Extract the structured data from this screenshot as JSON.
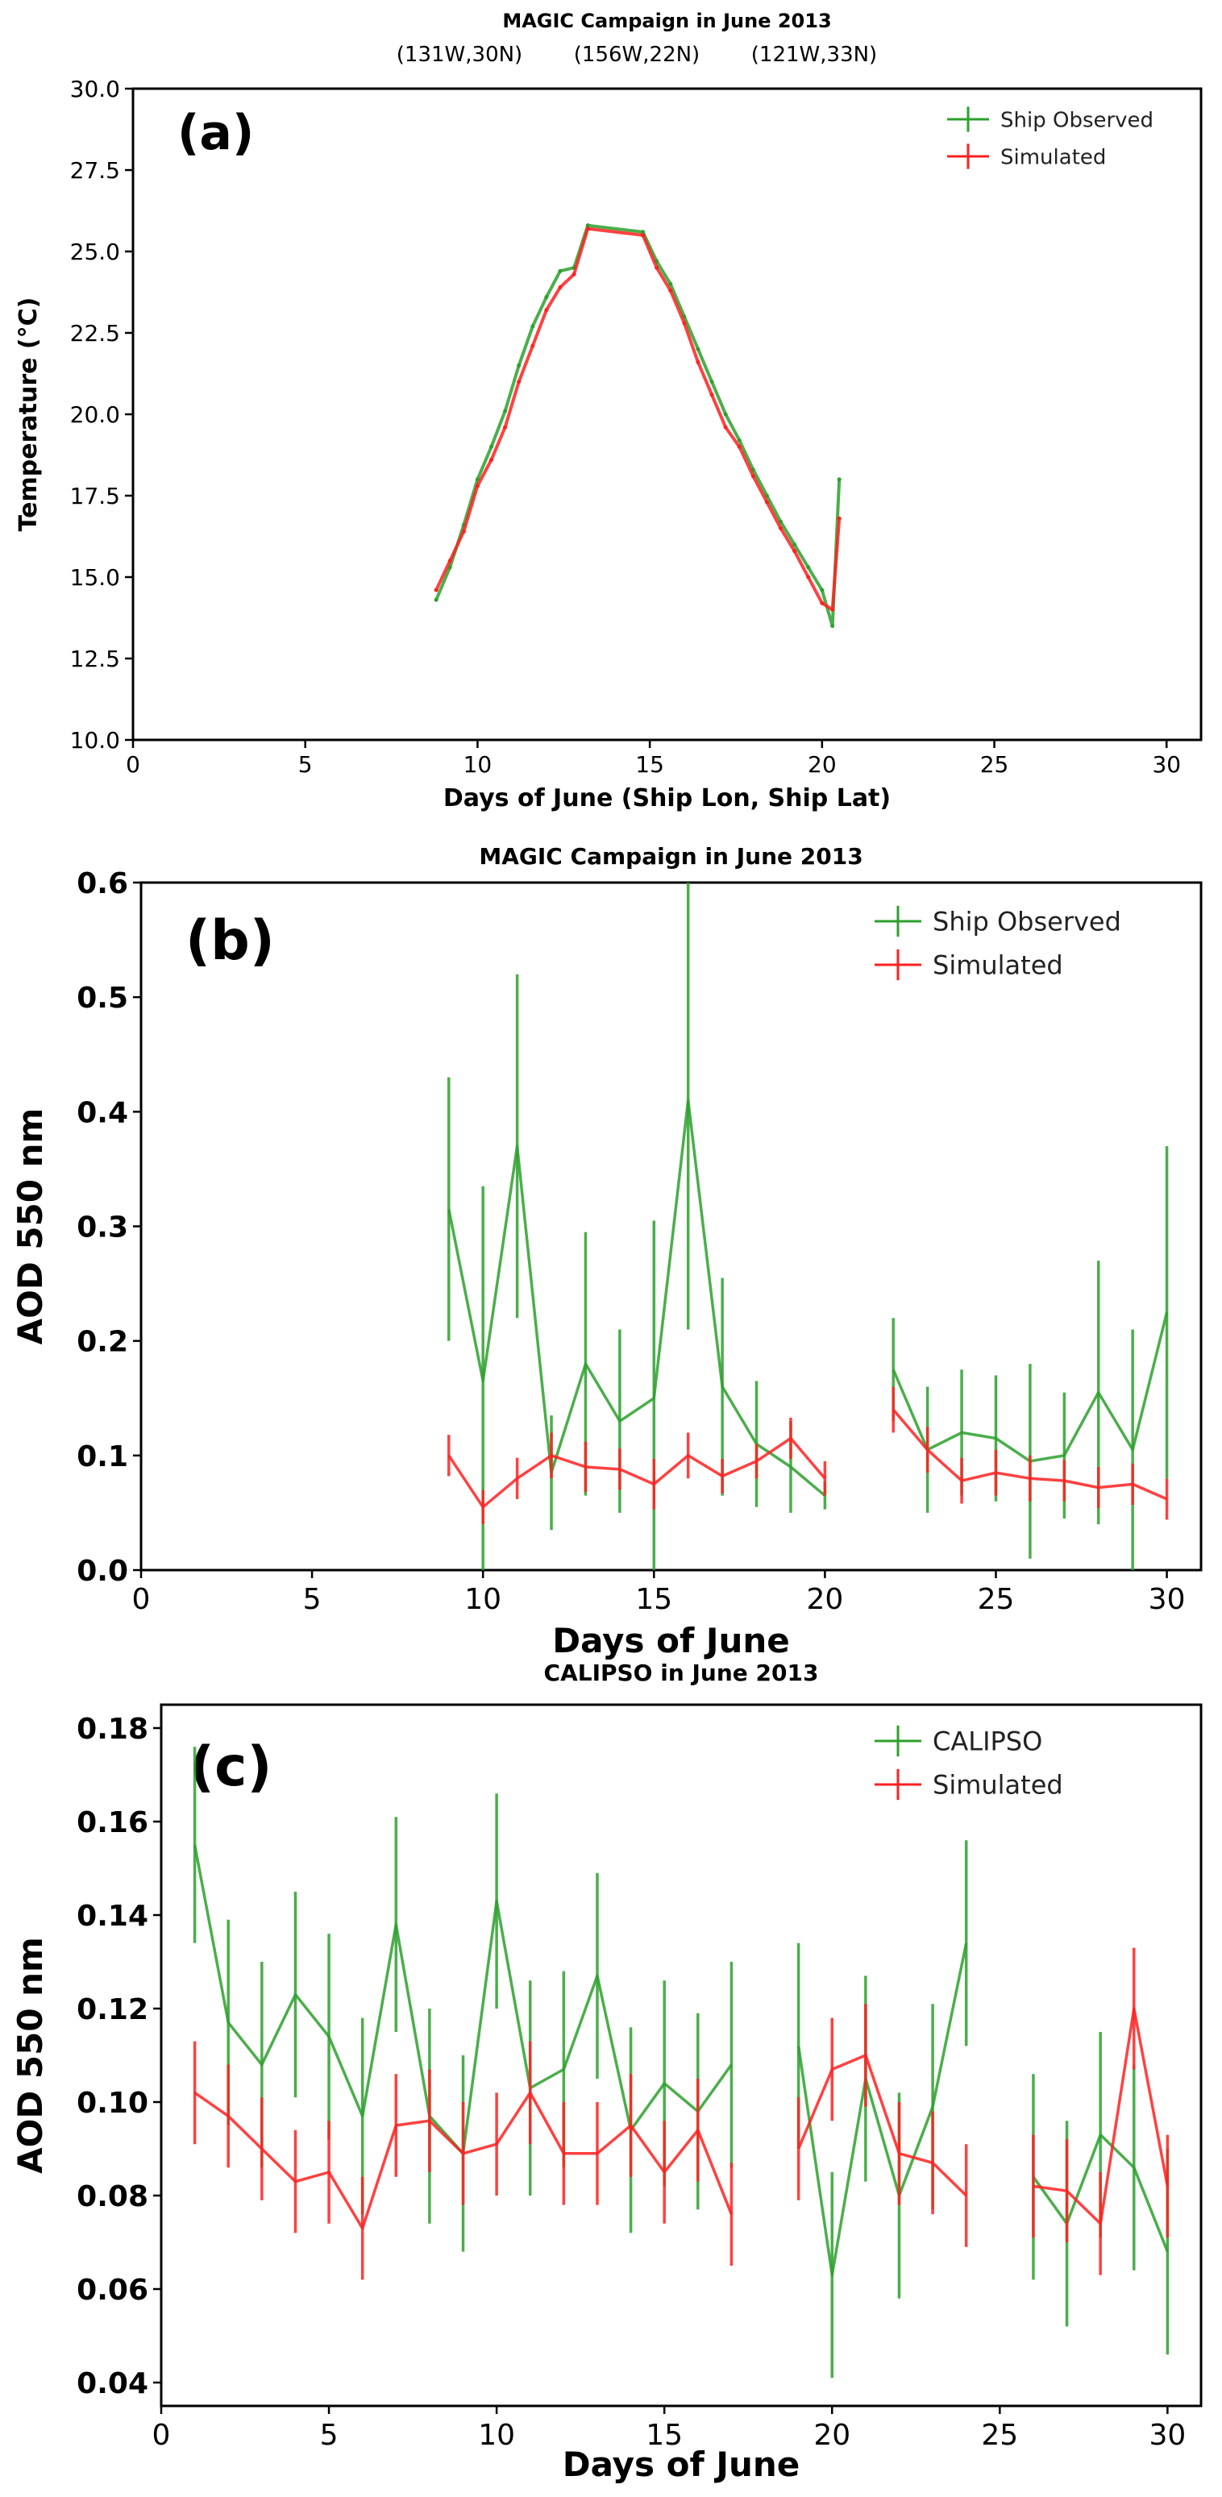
{
  "chart_data": [
    {
      "type": "line",
      "panel_letter": "(a)",
      "title": "MAGIC Campaign in June 2013",
      "subtitle_locations": [
        "(131W,30N)",
        "(156W,22N)",
        "(121W,33N)"
      ],
      "xlabel": "Days of June (Ship Lon, Ship Lat)",
      "ylabel": "Temperature (°C)",
      "xlim": [
        0,
        31
      ],
      "ylim": [
        10,
        30
      ],
      "xticks": [
        0,
        5,
        10,
        15,
        20,
        25,
        30
      ],
      "yticks": [
        10.0,
        12.5,
        15.0,
        17.5,
        20.0,
        22.5,
        25.0,
        27.5,
        30.0
      ],
      "ytick_labels": [
        "10.0",
        "12.5",
        "15.0",
        "17.5",
        "20.0",
        "22.5",
        "25.0",
        "27.5",
        "30.0"
      ],
      "legend_position": "top-right",
      "series": [
        {
          "name": "Ship Observed",
          "color": "#2ca02c",
          "x": [
            8.8,
            9.2,
            9.6,
            10.0,
            10.4,
            10.8,
            11.2,
            11.6,
            12.0,
            12.4,
            12.8,
            13.2,
            14.8,
            15.2,
            15.6,
            16.0,
            16.4,
            16.8,
            17.2,
            17.6,
            18.0,
            18.4,
            18.8,
            19.2,
            19.6,
            20.0,
            20.3,
            20.5
          ],
          "y": [
            14.3,
            15.3,
            16.6,
            18.0,
            19.0,
            20.1,
            21.5,
            22.7,
            23.6,
            24.4,
            24.5,
            25.8,
            25.6,
            24.7,
            24.0,
            23.0,
            22.0,
            21.0,
            20.0,
            19.2,
            18.3,
            17.5,
            16.7,
            16.0,
            15.3,
            14.6,
            13.5,
            18.0
          ]
        },
        {
          "name": "Simulated",
          "color": "#ff2020",
          "x": [
            8.8,
            9.2,
            9.6,
            10.0,
            10.4,
            10.8,
            11.2,
            11.6,
            12.0,
            12.4,
            12.8,
            13.2,
            14.8,
            15.2,
            15.6,
            16.0,
            16.4,
            16.8,
            17.2,
            17.6,
            18.0,
            18.4,
            18.8,
            19.2,
            19.6,
            20.0,
            20.3,
            20.5
          ],
          "y": [
            14.6,
            15.5,
            16.4,
            17.8,
            18.6,
            19.6,
            21.0,
            22.1,
            23.2,
            23.9,
            24.3,
            25.7,
            25.5,
            24.5,
            23.8,
            22.8,
            21.6,
            20.6,
            19.6,
            19.0,
            18.1,
            17.3,
            16.5,
            15.8,
            15.0,
            14.2,
            14.0,
            16.8
          ]
        }
      ]
    },
    {
      "type": "line",
      "panel_letter": "(b)",
      "title": "MAGIC Campaign in June 2013",
      "xlabel": "Days of June",
      "ylabel": "AOD 550 nm",
      "xlim": [
        0,
        31
      ],
      "ylim": [
        0,
        0.6
      ],
      "xticks": [
        0,
        5,
        10,
        15,
        20,
        25,
        30
      ],
      "yticks": [
        0.0,
        0.1,
        0.2,
        0.3,
        0.4,
        0.5,
        0.6
      ],
      "ytick_labels": [
        "0.0",
        "0.1",
        "0.2",
        "0.3",
        "0.4",
        "0.5",
        "0.6"
      ],
      "legend_position": "top-right",
      "series": [
        {
          "name": "Ship Observed",
          "color": "#2ca02c",
          "segments": [
            {
              "x": [
                9,
                10,
                11,
                12,
                13,
                14,
                15,
                16,
                17,
                18,
                19,
                20
              ],
              "y": [
                0.315,
                0.165,
                0.37,
                0.085,
                0.18,
                0.13,
                0.15,
                0.41,
                0.16,
                0.11,
                0.09,
                0.065
              ],
              "err": [
                0.115,
                0.17,
                0.15,
                0.05,
                0.115,
                0.08,
                0.155,
                0.2,
                0.095,
                0.055,
                0.04,
                0.012
              ]
            },
            {
              "x": [
                22,
                23,
                24,
                25,
                26,
                27,
                28,
                29,
                30
              ],
              "y": [
                0.175,
                0.105,
                0.12,
                0.115,
                0.095,
                0.1,
                0.155,
                0.105,
                0.225
              ],
              "err": [
                0.045,
                0.055,
                0.055,
                0.055,
                0.085,
                0.055,
                0.115,
                0.105,
                0.145
              ]
            }
          ]
        },
        {
          "name": "Simulated",
          "color": "#ff2020",
          "segments": [
            {
              "x": [
                9,
                10,
                11,
                12,
                13,
                14,
                15,
                16,
                17,
                18,
                19,
                20
              ],
              "y": [
                0.1,
                0.055,
                0.08,
                0.1,
                0.09,
                0.088,
                0.075,
                0.1,
                0.082,
                0.095,
                0.115,
                0.08
              ],
              "err": [
                0.018,
                0.015,
                0.018,
                0.02,
                0.022,
                0.018,
                0.022,
                0.02,
                0.015,
                0.015,
                0.018,
                0.015
              ]
            },
            {
              "x": [
                22,
                23,
                24,
                25,
                26,
                27,
                28,
                29,
                30
              ],
              "y": [
                0.14,
                0.105,
                0.078,
                0.085,
                0.08,
                0.078,
                0.072,
                0.075,
                0.062
              ],
              "err": [
                0.02,
                0.02,
                0.02,
                0.02,
                0.02,
                0.018,
                0.018,
                0.018,
                0.018
              ]
            }
          ]
        }
      ]
    },
    {
      "type": "line",
      "panel_letter": "(c)",
      "title": "CALIPSO in June 2013",
      "xlabel": "Days of June",
      "ylabel": "AOD 550 nm",
      "xlim": [
        0,
        31
      ],
      "ylim": [
        0.035,
        0.185
      ],
      "xticks": [
        0,
        5,
        10,
        15,
        20,
        25,
        30
      ],
      "yticks": [
        0.04,
        0.06,
        0.08,
        0.1,
        0.12,
        0.14,
        0.16,
        0.18
      ],
      "ytick_labels": [
        "0.04",
        "0.06",
        "0.08",
        "0.10",
        "0.12",
        "0.14",
        "0.16",
        "0.18"
      ],
      "legend_position": "top-right",
      "series": [
        {
          "name": "CALIPSO",
          "color": "#2ca02c",
          "segments": [
            {
              "x": [
                1,
                2,
                3,
                4,
                5,
                6,
                7,
                8,
                9,
                10,
                11,
                12,
                13,
                14,
                15,
                16,
                17
              ],
              "y": [
                0.155,
                0.117,
                0.108,
                0.123,
                0.114,
                0.097,
                0.138,
                0.097,
                0.089,
                0.143,
                0.103,
                0.107,
                0.127,
                0.094,
                0.104,
                0.098,
                0.108
              ],
              "err": [
                0.021,
                0.022,
                0.022,
                0.022,
                0.022,
                0.021,
                0.023,
                0.023,
                0.021,
                0.023,
                0.023,
                0.021,
                0.022,
                0.022,
                0.022,
                0.021,
                0.022
              ]
            },
            {
              "x": [
                19,
                20,
                21,
                22,
                23,
                24
              ],
              "y": [
                0.112,
                0.063,
                0.105,
                0.08,
                0.099,
                0.134
              ],
              "err": [
                0.022,
                0.022,
                0.022,
                0.022,
                0.022,
                0.022
              ]
            },
            {
              "x": [
                26,
                27,
                28,
                29,
                30
              ],
              "y": [
                0.084,
                0.074,
                0.093,
                0.086,
                0.068
              ],
              "err": [
                0.022,
                0.022,
                0.022,
                0.022,
                0.022
              ]
            }
          ]
        },
        {
          "name": "Simulated",
          "color": "#ff2020",
          "segments": [
            {
              "x": [
                1,
                2,
                3,
                4,
                5,
                6,
                7,
                8,
                9,
                10,
                11,
                12,
                13,
                14,
                15,
                16,
                17
              ],
              "y": [
                0.102,
                0.097,
                0.09,
                0.083,
                0.085,
                0.073,
                0.095,
                0.096,
                0.089,
                0.091,
                0.102,
                0.089,
                0.089,
                0.095,
                0.085,
                0.094,
                0.076
              ],
              "err": [
                0.011,
                0.011,
                0.011,
                0.011,
                0.011,
                0.011,
                0.011,
                0.011,
                0.011,
                0.011,
                0.011,
                0.011,
                0.011,
                0.011,
                0.011,
                0.011,
                0.011
              ]
            },
            {
              "x": [
                19,
                20,
                21,
                22,
                23,
                24
              ],
              "y": [
                0.09,
                0.107,
                0.11,
                0.089,
                0.087,
                0.08
              ],
              "err": [
                0.011,
                0.011,
                0.011,
                0.011,
                0.011,
                0.011
              ]
            },
            {
              "x": [
                26,
                27,
                28,
                29,
                30
              ],
              "y": [
                0.082,
                0.081,
                0.074,
                0.12,
                0.082
              ],
              "err": [
                0.011,
                0.011,
                0.011,
                0.013,
                0.011
              ]
            }
          ]
        }
      ]
    }
  ]
}
